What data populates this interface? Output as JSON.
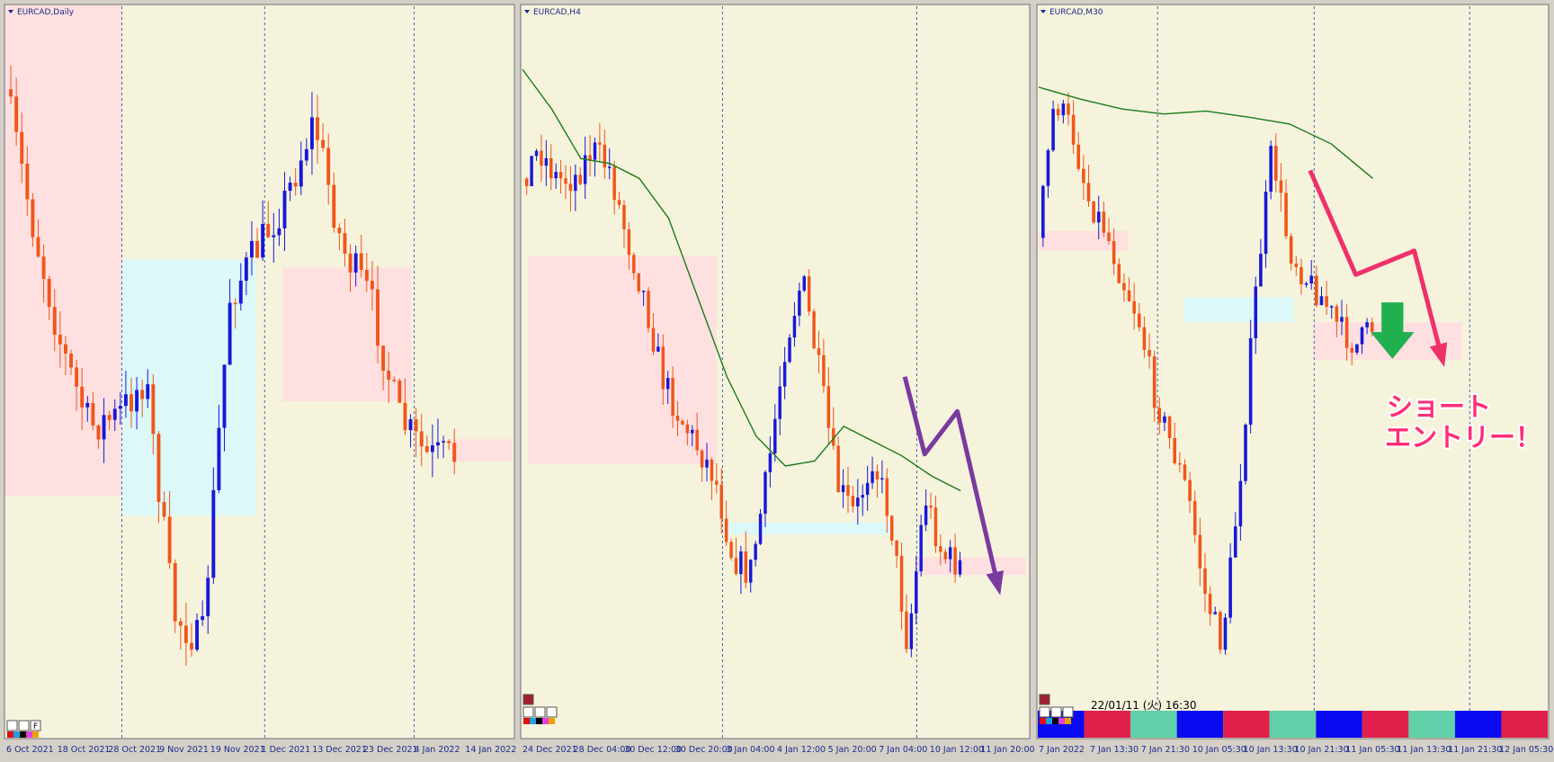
{
  "panels": [
    {
      "title": "EURCAD,Daily",
      "x_labels": [
        "6 Oct 2021",
        "18 Oct 2021",
        "28 Oct 2021",
        "9 Nov 2021",
        "19 Nov 2021",
        "1 Dec 2021",
        "13 Dec 2021",
        "23 Dec 2021",
        "4 Jan 2022",
        "14 Jan 2022"
      ],
      "button": "F"
    },
    {
      "title": "EURCAD,H4",
      "x_labels": [
        "24 Dec 2021",
        "28 Dec 04:00",
        "30 Dec 12:00",
        "30 Dec 20:00",
        "3 Jan 04:00",
        "4 Jan 12:00",
        "5 Jan 20:00",
        "7 Jan 04:00",
        "10 Jan 12:00",
        "11 Jan 20:00"
      ]
    },
    {
      "title": "EURCAD,M30",
      "x_labels": [
        "7 Jan 2022",
        "7 Jan 13:30",
        "7 Jan 21:30",
        "10 Jan 05:30",
        "10 Jan 13:30",
        "10 Jan 21:30",
        "11 Jan 05:30",
        "11 Jan 13:30",
        "11 Jan 21:30",
        "12 Jan 05:30"
      ]
    }
  ],
  "timestamp": "22/01/11 (火) 16:30",
  "annotation": [
    "ショート",
    "エントリー！"
  ]
}
